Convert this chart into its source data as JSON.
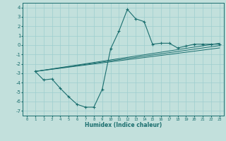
{
  "xlabel": "Humidex (Indice chaleur)",
  "xlim": [
    -0.5,
    23.5
  ],
  "ylim": [
    -7.5,
    4.5
  ],
  "xticks": [
    0,
    1,
    2,
    3,
    4,
    5,
    6,
    7,
    8,
    9,
    10,
    11,
    12,
    13,
    14,
    15,
    16,
    17,
    18,
    19,
    20,
    21,
    22,
    23
  ],
  "yticks": [
    -7,
    -6,
    -5,
    -4,
    -3,
    -2,
    -1,
    0,
    1,
    2,
    3,
    4
  ],
  "bg_color": "#c2e0dc",
  "line_color": "#1a6e6e",
  "grid_color": "#9ecece",
  "curve_x": [
    1,
    2,
    3,
    4,
    5,
    6,
    7,
    8,
    9,
    10,
    11,
    12,
    13,
    14,
    15,
    16,
    17,
    18,
    19,
    20,
    21,
    22,
    23
  ],
  "curve_y": [
    -2.8,
    -3.7,
    -3.6,
    -4.6,
    -5.5,
    -6.3,
    -6.6,
    -6.6,
    -4.7,
    -0.4,
    1.5,
    3.8,
    2.8,
    2.5,
    0.1,
    0.2,
    0.2,
    -0.3,
    -0.1,
    0.1,
    0.1,
    0.1,
    0.1
  ],
  "line2_x": [
    1,
    23
  ],
  "line2_y": [
    -2.8,
    0.2
  ],
  "line3_x": [
    1,
    23
  ],
  "line3_y": [
    -2.8,
    -0.05
  ],
  "line4_x": [
    1,
    23
  ],
  "line4_y": [
    -2.8,
    -0.3
  ]
}
